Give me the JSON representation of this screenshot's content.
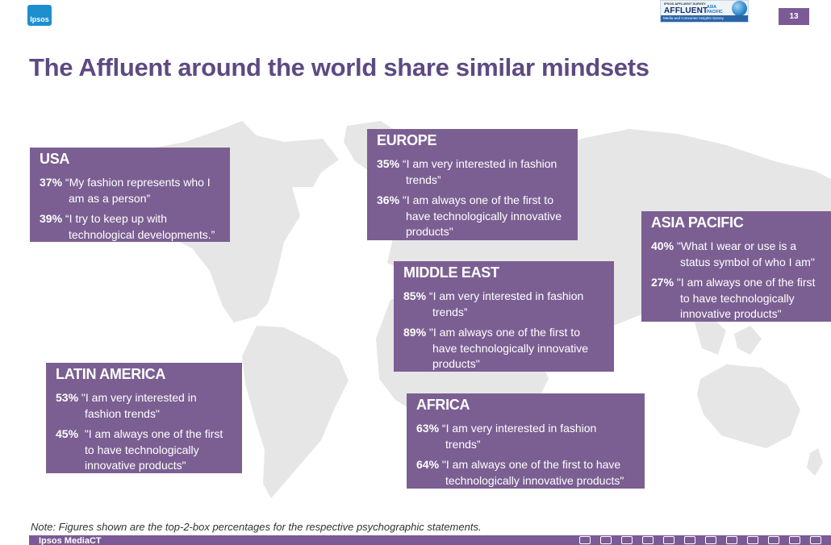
{
  "header": {
    "logo_text": "Ipsos",
    "survey_badge": {
      "top_text": "IPSOS AFFLUENT SURVEY",
      "brand": "AFFLUENT",
      "region_line1": "ASIA",
      "region_line2": "PACIFIC",
      "tagline": "Media and Consumer Insights Survey"
    },
    "page_number": "13"
  },
  "title": "The Affluent around the world share similar mindsets",
  "regions": {
    "usa": {
      "name": "USA",
      "s1": {
        "pct": "37%",
        "line1": "“My fashion represents who I",
        "line2": "am as a person”"
      },
      "s2": {
        "pct": "39%",
        "line1": "“I try to keep up with",
        "line2": "technological developments.”"
      }
    },
    "europe": {
      "name": "EUROPE",
      "s1": {
        "pct": "35%",
        "line1": "“I am very interested in fashion",
        "line2": "trends”"
      },
      "s2": {
        "pct": "36%",
        "line1": "\"I am always one of the first to",
        "line2a": "have technologically innovative",
        "line2b": "products\""
      }
    },
    "asia_pacific": {
      "name": "ASIA PACIFIC",
      "s1": {
        "pct": "40%",
        "line1": "\"What I wear or use is a",
        "line2": "status symbol of who I am\""
      },
      "s2": {
        "pct": "27%",
        "line1": "\"I am always one of the first",
        "line2a": "to have technologically",
        "line2b": "innovative products\""
      }
    },
    "middle_east": {
      "name": "MIDDLE EAST",
      "s1": {
        "pct": "85%",
        "line1": "“I am very interested in fashion",
        "line2": "trends”"
      },
      "s2": {
        "pct": "89%",
        "line1": "\"I am always one of the first to",
        "line2a": "have technologically innovative",
        "line2b": "products\""
      }
    },
    "latin_america": {
      "name": "LATIN AMERICA",
      "s1": {
        "pct": "53%",
        "line1": "\"I am very interested in",
        "line2": "fashion trends\""
      },
      "s2": {
        "pct": "45%",
        "line1": "\"I am always one of the first",
        "line2a": "to have technologically",
        "line2b": "innovative products\""
      }
    },
    "africa": {
      "name": "AFRICA",
      "s1": {
        "pct": "63%",
        "line1": "“I am very interested in fashion",
        "line2": "trends”"
      },
      "s2": {
        "pct": "64%",
        "line1": "\"I am always one of the first to have",
        "line2": "technologically innovative products\""
      }
    }
  },
  "note": "Note: Figures shown are the top-2-box percentages for the respective psychographic statements.",
  "footer": {
    "brand": "Ipsos MediaCT"
  },
  "colors": {
    "title": "#5d4a82",
    "box": "#7b5f92",
    "accent": "#7b5a96",
    "map": "#e6e6e6"
  }
}
